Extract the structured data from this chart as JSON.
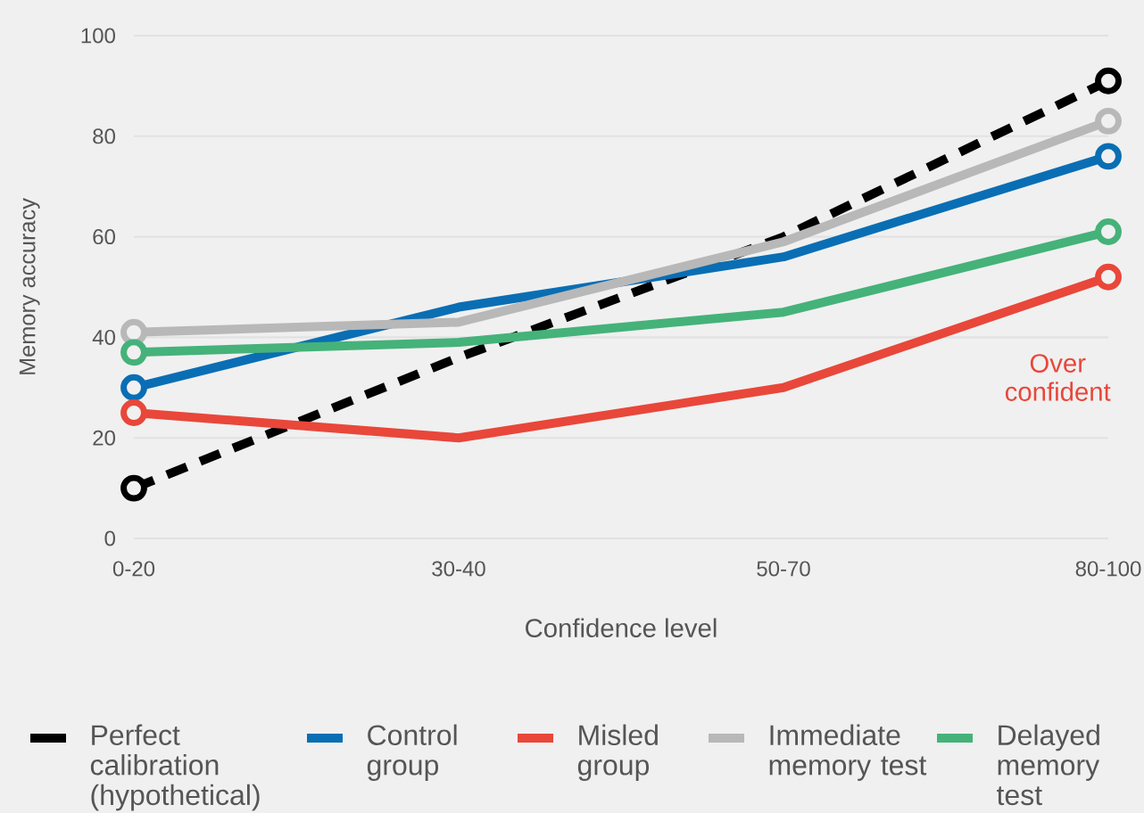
{
  "chart_data": {
    "type": "line",
    "xlabel": "Confidence level",
    "ylabel": "Memory accuracy",
    "categories": [
      "0-20",
      "30-40",
      "50-70",
      "80-100"
    ],
    "series": [
      {
        "name": "Perfect calibration (hypothetical)",
        "color": "#000000",
        "line_style": "dashed",
        "values": [
          10,
          36,
          60,
          91
        ]
      },
      {
        "name": "Control group",
        "color": "#0a6eb4",
        "values": [
          30,
          46,
          56,
          76
        ]
      },
      {
        "name": "Misled group",
        "color": "#e8473a",
        "values": [
          25,
          20,
          30,
          52
        ]
      },
      {
        "name": "Immediate memory test",
        "color": "#b8b8b8",
        "values": [
          41,
          43,
          59,
          83
        ]
      },
      {
        "name": "Delayed memory test",
        "color": "#45b27a",
        "values": [
          37,
          39,
          45,
          61
        ]
      }
    ],
    "ylim": [
      0,
      100
    ],
    "yticks": [
      0,
      20,
      40,
      60,
      80,
      100
    ],
    "grid": "y",
    "legend": "bottom",
    "marker": "circle",
    "line_style": "solid",
    "annotations": [
      "Over confident"
    ]
  }
}
